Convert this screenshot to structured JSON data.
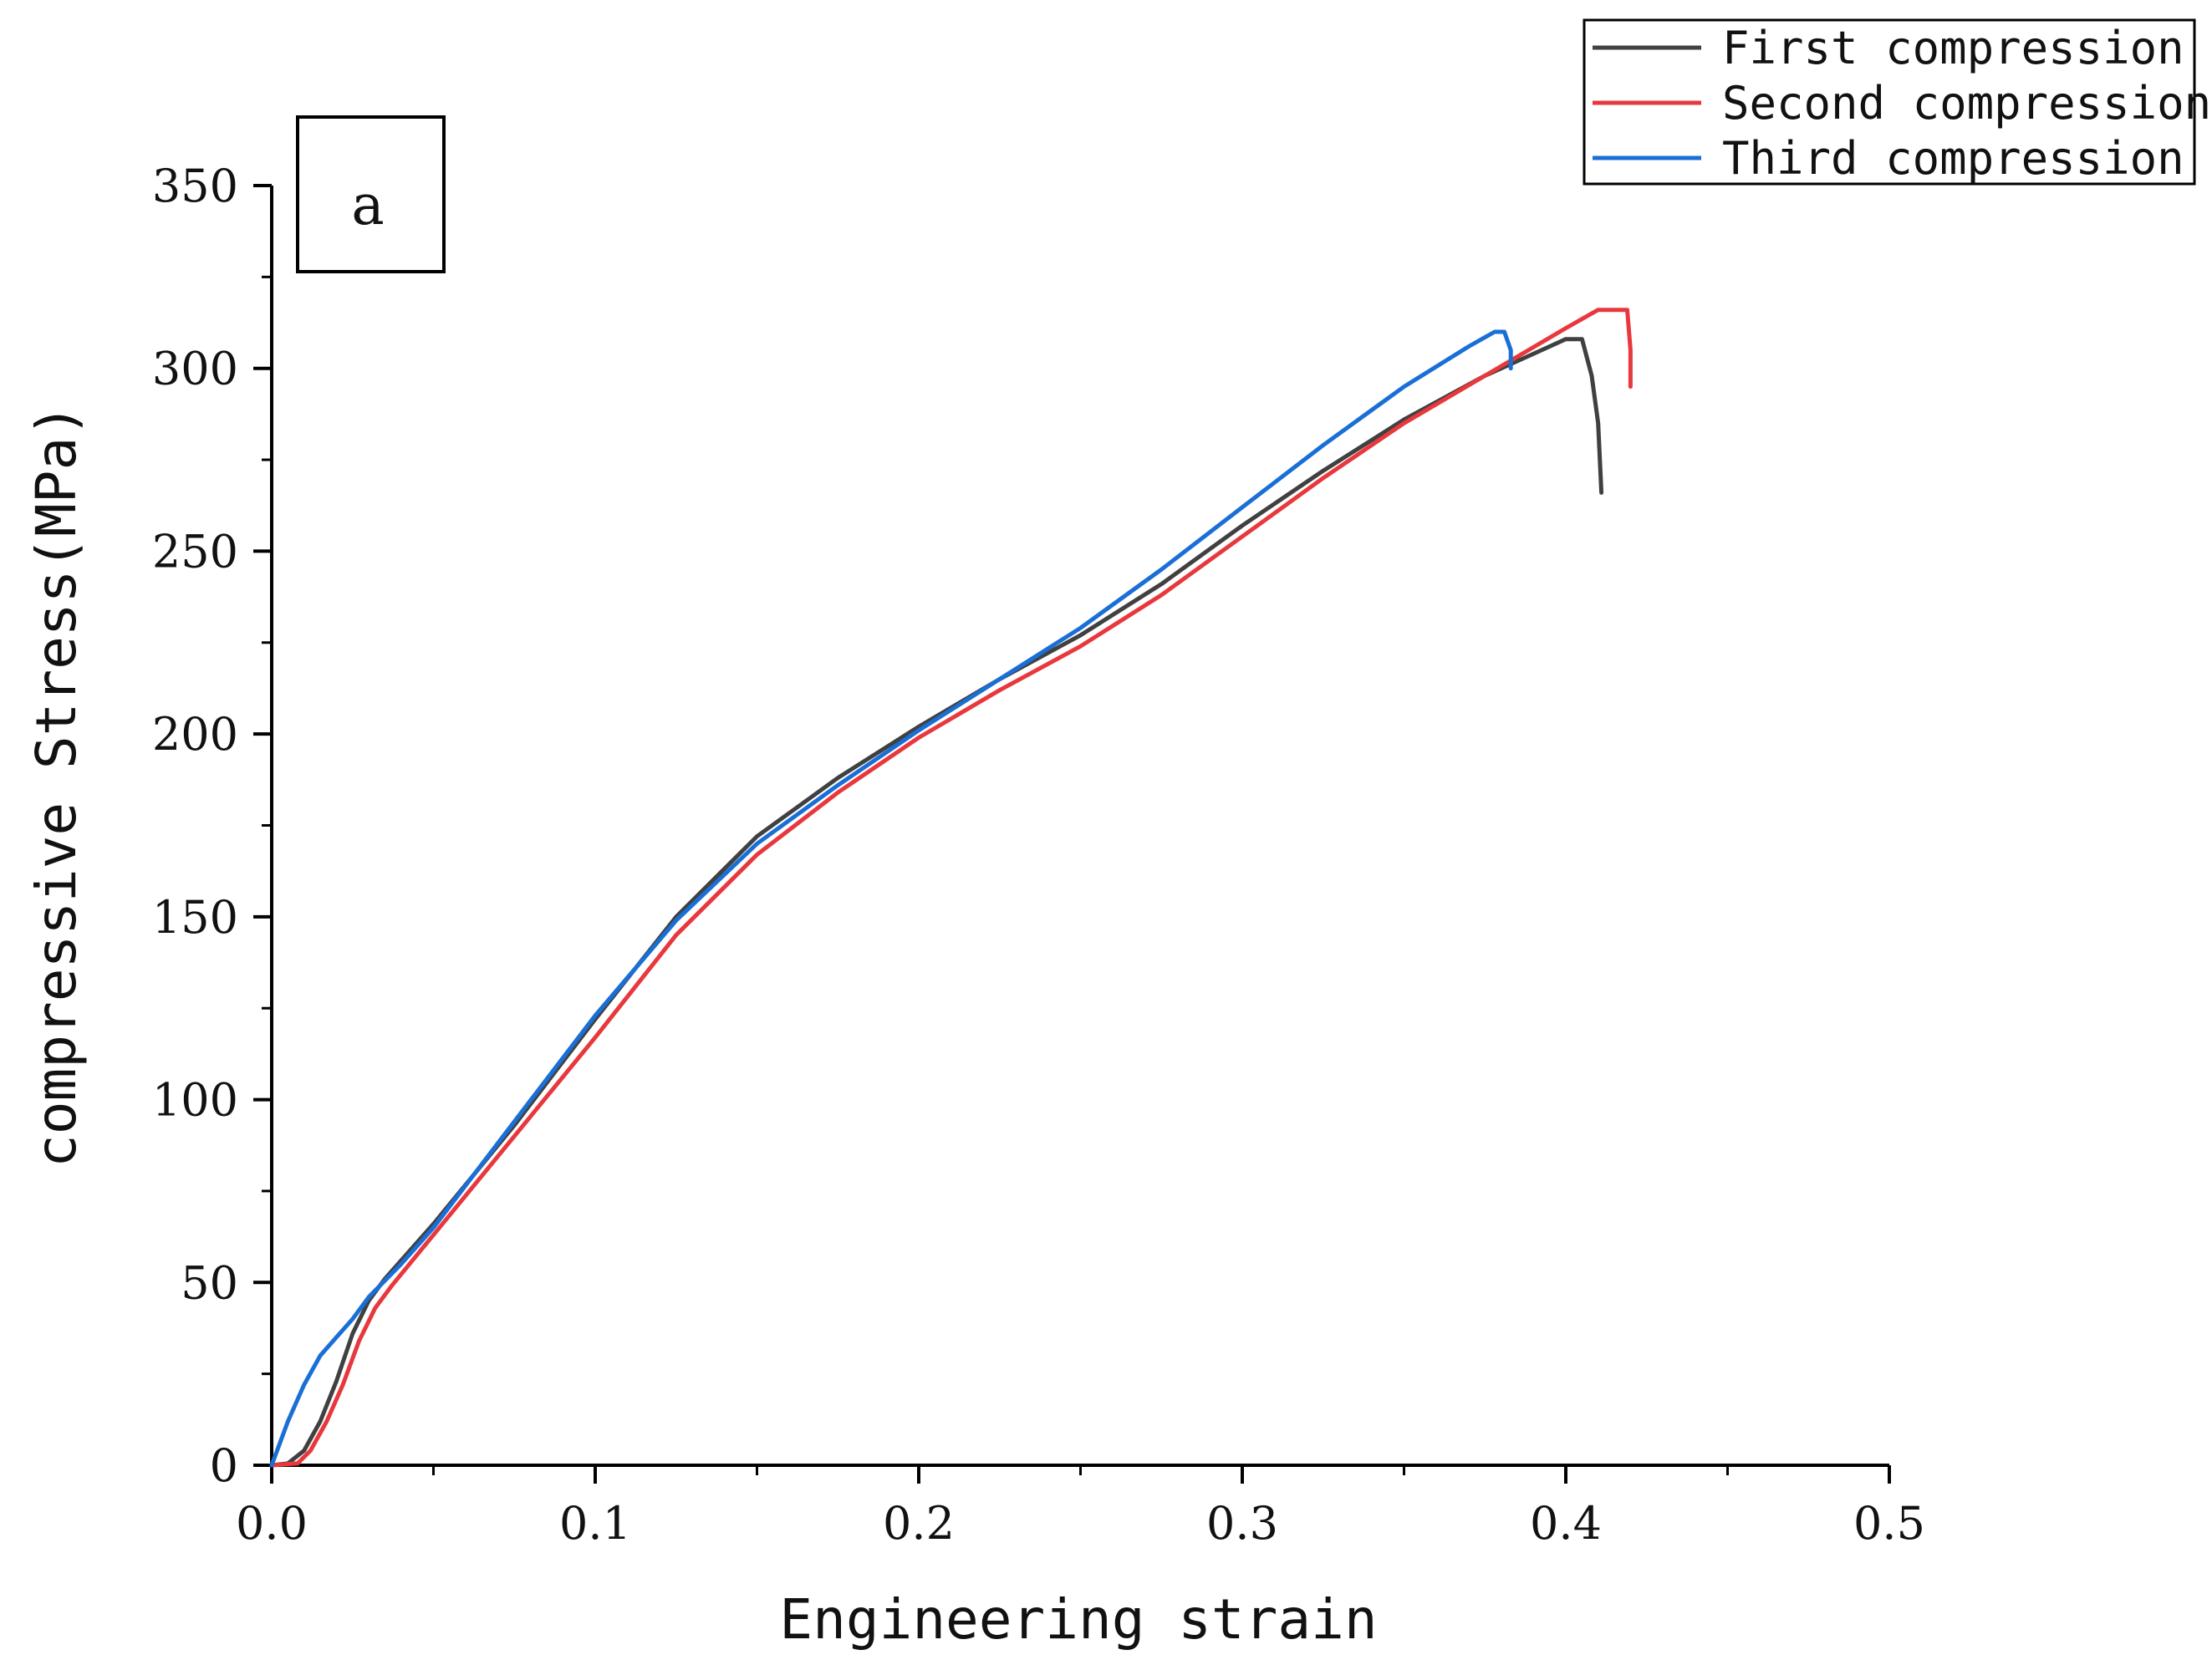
{
  "chart_data": {
    "type": "line",
    "title": "",
    "panel_label": "a",
    "xlabel": "Engineering strain",
    "ylabel": "compressive  Stress(MPa)",
    "xlim": [
      0.0,
      0.5
    ],
    "ylim": [
      0,
      350
    ],
    "x_ticks": [
      0.0,
      0.1,
      0.2,
      0.3,
      0.4,
      0.5
    ],
    "x_tick_labels": [
      "0.0",
      "0.1",
      "0.2",
      "0.3",
      "0.4",
      "0.5"
    ],
    "y_ticks": [
      0,
      50,
      100,
      150,
      200,
      250,
      300,
      350
    ],
    "y_tick_labels": [
      "0",
      "50",
      "100",
      "150",
      "200",
      "250",
      "300",
      "350"
    ],
    "grid": false,
    "legend_position": "top-right",
    "series": [
      {
        "name": "First compression",
        "color": "#404040",
        "points": [
          [
            0.0,
            0
          ],
          [
            0.005,
            0.5
          ],
          [
            0.01,
            4
          ],
          [
            0.015,
            12
          ],
          [
            0.02,
            23
          ],
          [
            0.025,
            36
          ],
          [
            0.03,
            45
          ],
          [
            0.035,
            51
          ],
          [
            0.05,
            66
          ],
          [
            0.075,
            93
          ],
          [
            0.1,
            122
          ],
          [
            0.125,
            150
          ],
          [
            0.15,
            172
          ],
          [
            0.175,
            188
          ],
          [
            0.2,
            202
          ],
          [
            0.225,
            215
          ],
          [
            0.25,
            227
          ],
          [
            0.275,
            241
          ],
          [
            0.3,
            257
          ],
          [
            0.325,
            272
          ],
          [
            0.35,
            286
          ],
          [
            0.375,
            298
          ],
          [
            0.395,
            306
          ],
          [
            0.4,
            308
          ],
          [
            0.405,
            308
          ],
          [
            0.408,
            298
          ],
          [
            0.41,
            285
          ],
          [
            0.411,
            266
          ]
        ]
      },
      {
        "name": "Second compression",
        "color": "#e8383d",
        "points": [
          [
            0.0,
            0
          ],
          [
            0.008,
            0.5
          ],
          [
            0.012,
            4
          ],
          [
            0.017,
            12
          ],
          [
            0.022,
            22
          ],
          [
            0.027,
            34
          ],
          [
            0.032,
            43
          ],
          [
            0.037,
            49
          ],
          [
            0.05,
            63
          ],
          [
            0.075,
            90
          ],
          [
            0.1,
            117
          ],
          [
            0.125,
            145
          ],
          [
            0.15,
            167
          ],
          [
            0.175,
            184
          ],
          [
            0.2,
            199
          ],
          [
            0.225,
            212
          ],
          [
            0.25,
            224
          ],
          [
            0.275,
            238
          ],
          [
            0.3,
            254
          ],
          [
            0.325,
            270
          ],
          [
            0.35,
            285
          ],
          [
            0.375,
            298
          ],
          [
            0.4,
            311
          ],
          [
            0.41,
            316
          ],
          [
            0.419,
            316
          ],
          [
            0.42,
            305
          ],
          [
            0.42,
            295
          ]
        ]
      },
      {
        "name": "Third compression",
        "color": "#1a6fd6",
        "points": [
          [
            0.0,
            0
          ],
          [
            0.005,
            12
          ],
          [
            0.01,
            22
          ],
          [
            0.015,
            30
          ],
          [
            0.02,
            35
          ],
          [
            0.025,
            40
          ],
          [
            0.03,
            46
          ],
          [
            0.04,
            55
          ],
          [
            0.05,
            65
          ],
          [
            0.075,
            94
          ],
          [
            0.1,
            123
          ],
          [
            0.125,
            149
          ],
          [
            0.15,
            170
          ],
          [
            0.175,
            186
          ],
          [
            0.2,
            201
          ],
          [
            0.225,
            215
          ],
          [
            0.25,
            229
          ],
          [
            0.275,
            245
          ],
          [
            0.3,
            262
          ],
          [
            0.325,
            279
          ],
          [
            0.35,
            295
          ],
          [
            0.37,
            306
          ],
          [
            0.378,
            310
          ],
          [
            0.381,
            310
          ],
          [
            0.383,
            305
          ],
          [
            0.383,
            300
          ]
        ]
      }
    ]
  }
}
